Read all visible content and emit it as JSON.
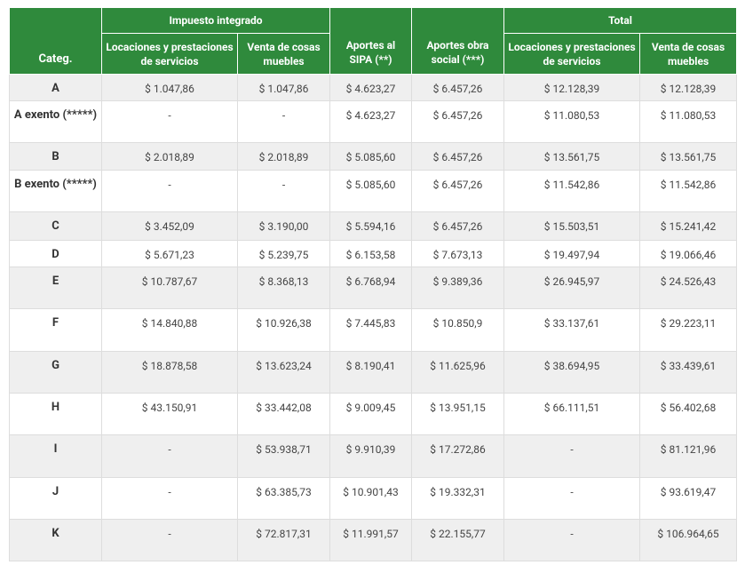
{
  "header": {
    "category": "Categ.",
    "groups": [
      "Impuesto integrado",
      "Total"
    ],
    "columns": [
      "Locaciones y prestaciones de servicios",
      "Venta de cosas muebles",
      "Aportes al SIPA (**)",
      "Aportes obra social (***)",
      "Locaciones y prestaciones de servicios",
      "Venta de cosas muebles"
    ]
  },
  "table": {
    "rows": [
      [
        "A",
        "$ 1.047,86",
        "$ 1.047,86",
        "$ 4.623,27",
        "$ 6.457,26",
        "$ 12.128,39",
        "$ 12.128,39"
      ],
      [
        "A exento (*****)",
        "-",
        "-",
        "$ 4.623,27",
        "$ 6.457,26",
        "$ 11.080,53",
        "$ 11.080,53"
      ],
      [
        "B",
        "$ 2.018,89",
        "$ 2.018,89",
        "$ 5.085,60",
        "$ 6.457,26",
        "$ 13.561,75",
        "$ 13.561,75"
      ],
      [
        "B exento (*****)",
        "-",
        "-",
        "$ 5.085,60",
        "$ 6.457,26",
        "$ 11.542,86",
        "$ 11.542,86"
      ],
      [
        "C",
        "$ 3.452,09",
        "$ 3.190,00",
        "$ 5.594,16",
        "$ 6.457,26",
        "$ 15.503,51",
        "$ 15.241,42"
      ],
      [
        "D",
        "$ 5.671,23",
        "$ 5.239,75",
        "$ 6.153,58",
        "$ 7.673,13",
        "$ 19.497,94",
        "$ 19.066,46"
      ],
      [
        "E",
        "$ 10.787,67",
        "$ 8.368,13",
        "$ 6.768,94",
        "$ 9.389,36",
        "$ 26.945,97",
        "$ 24.526,43"
      ],
      [
        "F",
        "$ 14.840,88",
        "$ 10.926,38",
        "$ 7.445,83",
        "$ 10.850,9",
        "$ 33.137,61",
        "$ 29.223,11"
      ],
      [
        "G",
        "$ 18.878,58",
        "$ 13.623,24",
        "$ 8.190,41",
        "$ 11.625,96",
        "$ 38.694,95",
        "$ 33.439,61"
      ],
      [
        "H",
        "$ 43.150,91",
        "$ 33.442,08",
        "$ 9.009,45",
        "$ 13.951,15",
        "$ 66.111,51",
        "$ 56.402,68"
      ],
      [
        "I",
        "-",
        "$ 53.938,71",
        "$ 9.910,39",
        "$ 17.272,86",
        "-",
        "$ 81.121,96"
      ],
      [
        "J",
        "-",
        "$ 63.385,73",
        "$ 10.901,43",
        "$ 19.332,31",
        "-",
        "$ 93.619,47"
      ],
      [
        "K",
        "-",
        "$ 72.817,31",
        "$ 11.991,57",
        "$ 22.155,77",
        "-",
        "$ 106.964,65"
      ]
    ]
  }
}
